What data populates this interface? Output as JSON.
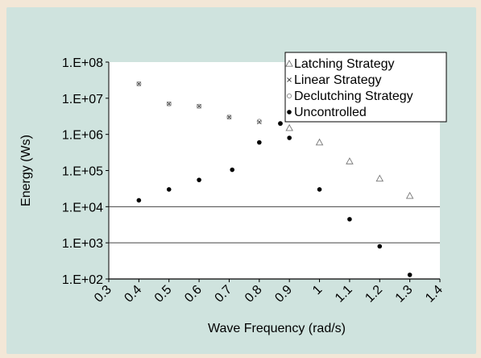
{
  "chart_data": {
    "type": "scatter",
    "title": "",
    "xlabel": "Wave Frequency (rad/s)",
    "ylabel": "Energy (Ws)",
    "xlim": [
      0.3,
      1.4
    ],
    "ylim": [
      100,
      100000000
    ],
    "yscale": "log",
    "x_ticks": [
      "0.3",
      "0.4",
      "0.5",
      "0.6",
      "0.7",
      "0.8",
      "0.9",
      "1",
      "1.1",
      "1.2",
      "1.3",
      "1.4"
    ],
    "x_tick_values": [
      0.3,
      0.4,
      0.5,
      0.6,
      0.7,
      0.8,
      0.9,
      1.0,
      1.1,
      1.2,
      1.3,
      1.4
    ],
    "y_ticks": [
      "1.E+02",
      "1.E+03",
      "1.E+04",
      "1.E+05",
      "1.E+06",
      "1.E+07",
      "1.E+08"
    ],
    "y_tick_values": [
      100,
      1000,
      10000,
      100000,
      1000000,
      10000000,
      100000000
    ],
    "gridlines_y": [
      1000,
      10000
    ],
    "legend_position": "top-right",
    "series": [
      {
        "name": "Latching Strategy",
        "marker": "triangle",
        "x": [
          0.9,
          1.0,
          1.1,
          1.2,
          1.3
        ],
        "y": [
          1500000,
          600000,
          180000,
          60000,
          20000
        ]
      },
      {
        "name": "Linear Strategy",
        "marker": "x",
        "x": [
          0.4,
          0.5,
          0.6,
          0.7,
          0.8
        ],
        "y": [
          25000000,
          7000000,
          6000000,
          3000000,
          2200000
        ]
      },
      {
        "name": "Declutching Strategy",
        "marker": "circle-open",
        "x": [
          0.4,
          0.5,
          0.6,
          0.7,
          0.8,
          0.87
        ],
        "y": [
          25000000,
          7000000,
          6000000,
          3000000,
          2300000,
          2000000
        ]
      },
      {
        "name": "Uncontrolled",
        "marker": "dot",
        "x": [
          0.4,
          0.5,
          0.6,
          0.71,
          0.8,
          0.87,
          0.9,
          1.0,
          1.1,
          1.2,
          1.3
        ],
        "y": [
          15000,
          30000,
          55000,
          105000,
          600000,
          2000000,
          800000,
          30000,
          4500,
          800,
          130
        ]
      }
    ]
  }
}
